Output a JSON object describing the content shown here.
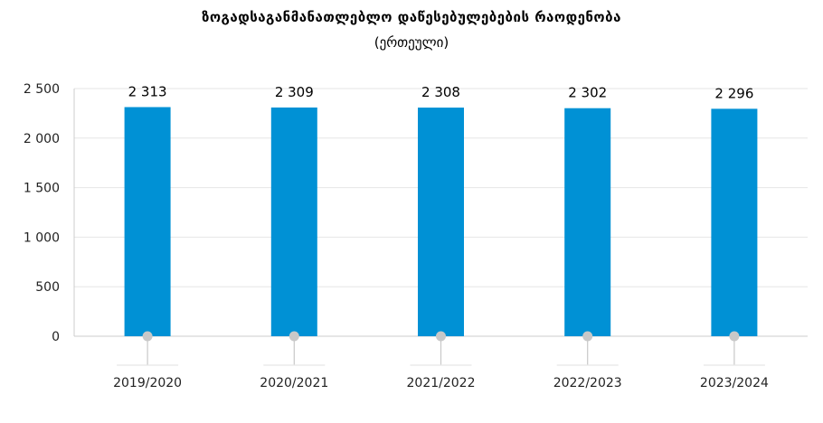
{
  "chart_data": {
    "type": "bar",
    "title": "ზოგადსაგანმანათლებლო დაწესებულებების რაოდენობა",
    "subtitle": "(ერთეული)",
    "categories": [
      "2019/2020",
      "2020/2021",
      "2021/2022",
      "2022/2023",
      "2023/2024"
    ],
    "values": [
      2313,
      2309,
      2308,
      2302,
      2296
    ],
    "value_labels": [
      "2 313",
      "2 309",
      "2 308",
      "2 302",
      "2 296"
    ],
    "ylim": [
      0,
      2500
    ],
    "yticks": [
      0,
      500,
      1000,
      1500,
      2000,
      2500
    ],
    "ytick_labels": [
      "0",
      "500",
      "1 000",
      "1 500",
      "2 000",
      "2 500"
    ],
    "xlabel": "",
    "ylabel": "",
    "grid": true,
    "legend": "none",
    "colors": {
      "bar": "#0091d5",
      "marker": "#c8c8c8",
      "grid": "#e6e6e6",
      "axis": "#cccccc"
    }
  }
}
